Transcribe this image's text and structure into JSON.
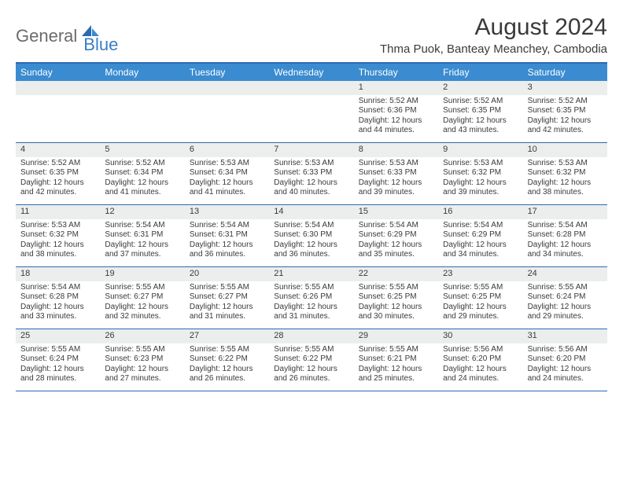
{
  "logo": {
    "part1": "General",
    "part2": "Blue"
  },
  "title": "August 2024",
  "subtitle": "Thma Puok, Banteay Meanchey, Cambodia",
  "colors": {
    "header_bg": "#3a8bd0",
    "header_text": "#ffffff",
    "rule": "#2a6bb0",
    "daynum_bg": "#eceded",
    "text": "#3a3a3a",
    "logo_gray": "#6b6b6b",
    "logo_blue": "#3a7fc4"
  },
  "day_names": [
    "Sunday",
    "Monday",
    "Tuesday",
    "Wednesday",
    "Thursday",
    "Friday",
    "Saturday"
  ],
  "weeks": [
    [
      null,
      null,
      null,
      null,
      {
        "d": "1",
        "sr": "5:52 AM",
        "ss": "6:36 PM",
        "dl": "12 hours and 44 minutes."
      },
      {
        "d": "2",
        "sr": "5:52 AM",
        "ss": "6:35 PM",
        "dl": "12 hours and 43 minutes."
      },
      {
        "d": "3",
        "sr": "5:52 AM",
        "ss": "6:35 PM",
        "dl": "12 hours and 42 minutes."
      }
    ],
    [
      {
        "d": "4",
        "sr": "5:52 AM",
        "ss": "6:35 PM",
        "dl": "12 hours and 42 minutes."
      },
      {
        "d": "5",
        "sr": "5:52 AM",
        "ss": "6:34 PM",
        "dl": "12 hours and 41 minutes."
      },
      {
        "d": "6",
        "sr": "5:53 AM",
        "ss": "6:34 PM",
        "dl": "12 hours and 41 minutes."
      },
      {
        "d": "7",
        "sr": "5:53 AM",
        "ss": "6:33 PM",
        "dl": "12 hours and 40 minutes."
      },
      {
        "d": "8",
        "sr": "5:53 AM",
        "ss": "6:33 PM",
        "dl": "12 hours and 39 minutes."
      },
      {
        "d": "9",
        "sr": "5:53 AM",
        "ss": "6:32 PM",
        "dl": "12 hours and 39 minutes."
      },
      {
        "d": "10",
        "sr": "5:53 AM",
        "ss": "6:32 PM",
        "dl": "12 hours and 38 minutes."
      }
    ],
    [
      {
        "d": "11",
        "sr": "5:53 AM",
        "ss": "6:32 PM",
        "dl": "12 hours and 38 minutes."
      },
      {
        "d": "12",
        "sr": "5:54 AM",
        "ss": "6:31 PM",
        "dl": "12 hours and 37 minutes."
      },
      {
        "d": "13",
        "sr": "5:54 AM",
        "ss": "6:31 PM",
        "dl": "12 hours and 36 minutes."
      },
      {
        "d": "14",
        "sr": "5:54 AM",
        "ss": "6:30 PM",
        "dl": "12 hours and 36 minutes."
      },
      {
        "d": "15",
        "sr": "5:54 AM",
        "ss": "6:29 PM",
        "dl": "12 hours and 35 minutes."
      },
      {
        "d": "16",
        "sr": "5:54 AM",
        "ss": "6:29 PM",
        "dl": "12 hours and 34 minutes."
      },
      {
        "d": "17",
        "sr": "5:54 AM",
        "ss": "6:28 PM",
        "dl": "12 hours and 34 minutes."
      }
    ],
    [
      {
        "d": "18",
        "sr": "5:54 AM",
        "ss": "6:28 PM",
        "dl": "12 hours and 33 minutes."
      },
      {
        "d": "19",
        "sr": "5:55 AM",
        "ss": "6:27 PM",
        "dl": "12 hours and 32 minutes."
      },
      {
        "d": "20",
        "sr": "5:55 AM",
        "ss": "6:27 PM",
        "dl": "12 hours and 31 minutes."
      },
      {
        "d": "21",
        "sr": "5:55 AM",
        "ss": "6:26 PM",
        "dl": "12 hours and 31 minutes."
      },
      {
        "d": "22",
        "sr": "5:55 AM",
        "ss": "6:25 PM",
        "dl": "12 hours and 30 minutes."
      },
      {
        "d": "23",
        "sr": "5:55 AM",
        "ss": "6:25 PM",
        "dl": "12 hours and 29 minutes."
      },
      {
        "d": "24",
        "sr": "5:55 AM",
        "ss": "6:24 PM",
        "dl": "12 hours and 29 minutes."
      }
    ],
    [
      {
        "d": "25",
        "sr": "5:55 AM",
        "ss": "6:24 PM",
        "dl": "12 hours and 28 minutes."
      },
      {
        "d": "26",
        "sr": "5:55 AM",
        "ss": "6:23 PM",
        "dl": "12 hours and 27 minutes."
      },
      {
        "d": "27",
        "sr": "5:55 AM",
        "ss": "6:22 PM",
        "dl": "12 hours and 26 minutes."
      },
      {
        "d": "28",
        "sr": "5:55 AM",
        "ss": "6:22 PM",
        "dl": "12 hours and 26 minutes."
      },
      {
        "d": "29",
        "sr": "5:55 AM",
        "ss": "6:21 PM",
        "dl": "12 hours and 25 minutes."
      },
      {
        "d": "30",
        "sr": "5:56 AM",
        "ss": "6:20 PM",
        "dl": "12 hours and 24 minutes."
      },
      {
        "d": "31",
        "sr": "5:56 AM",
        "ss": "6:20 PM",
        "dl": "12 hours and 24 minutes."
      }
    ]
  ],
  "labels": {
    "sunrise": "Sunrise: ",
    "sunset": "Sunset: ",
    "daylight": "Daylight: "
  }
}
